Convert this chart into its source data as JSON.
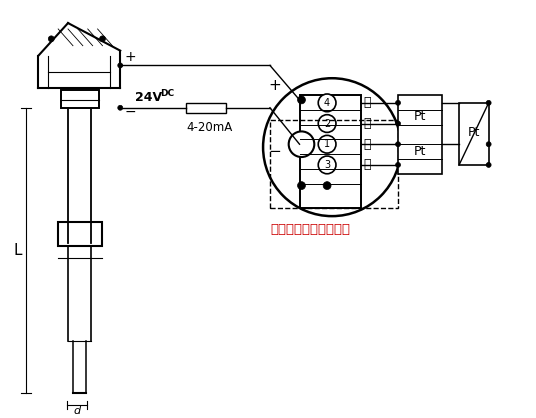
{
  "bg_color": "#ffffff",
  "line_color": "#000000",
  "red_text_color": "#cc0000",
  "annotation_text": "热电阻：三线或四线制",
  "label_24v": "24V",
  "label_dc": "DC",
  "label_plus": "+",
  "label_minus": "−",
  "label_4_20ma": "4-20mA",
  "label_bai1": "白",
  "label_bai2": "白",
  "label_hong1": "红",
  "label_hong2": "红",
  "label_pt1": "Pt",
  "label_pt2": "Pt",
  "terminal_numbers": [
    "4",
    "2",
    "1",
    "3"
  ],
  "figsize": [
    5.36,
    4.18
  ],
  "dpi": 100
}
